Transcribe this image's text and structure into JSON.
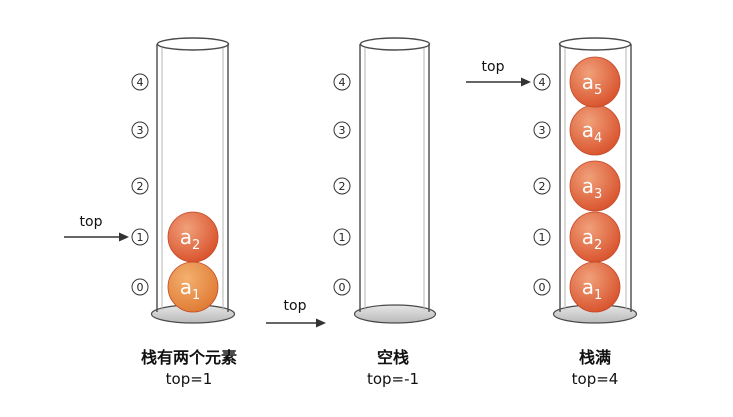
{
  "index_labels": [
    "0",
    "1",
    "2",
    "3",
    "4"
  ],
  "pointer_label": "top",
  "stacks": [
    {
      "title": "栈有两个元素",
      "state": "top=1",
      "top_index": 1,
      "pointer_at_index": 1,
      "elements": [
        {
          "letter": "a",
          "sub": "1"
        },
        {
          "letter": "a",
          "sub": "2"
        }
      ]
    },
    {
      "title": "空栈",
      "state": "top=-1",
      "top_index": -1,
      "pointer_at_index": -1,
      "elements": []
    },
    {
      "title": "栈满",
      "state": "top=4",
      "top_index": 4,
      "pointer_at_index": 4,
      "elements": [
        {
          "letter": "a",
          "sub": "1"
        },
        {
          "letter": "a",
          "sub": "2"
        },
        {
          "letter": "a",
          "sub": "3"
        },
        {
          "letter": "a",
          "sub": "4"
        },
        {
          "letter": "a",
          "sub": "5"
        }
      ]
    }
  ],
  "colors": {
    "ball_light": "#f0a07a",
    "ball_dark": "#d9542e",
    "ball_first_light": "#f4b070",
    "ball_first_dark": "#e07c35",
    "tube_stroke": "#4a4a4a",
    "base_fill": "#d2d2d2"
  }
}
